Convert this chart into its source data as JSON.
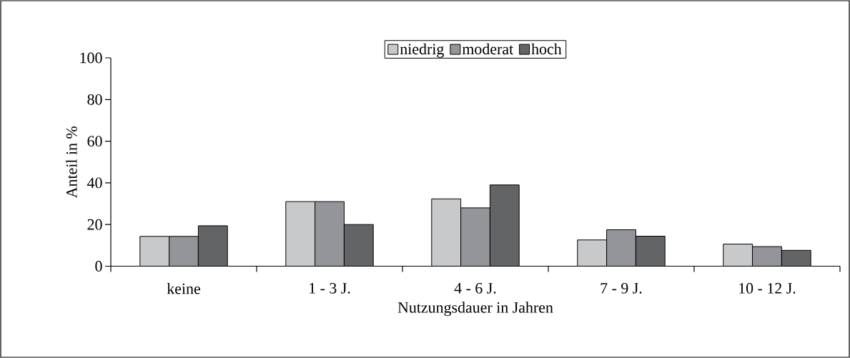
{
  "chart_data": {
    "type": "bar",
    "xlabel": "Nutzungsdauer in Jahren",
    "ylabel": "Anteil in %",
    "categories": [
      "keine",
      "1 - 3 J.",
      "4 - 6 J.",
      "7 - 9 J.",
      "10 - 12 J."
    ],
    "series": [
      {
        "name": "niedrig",
        "color": "#c8c9cb",
        "values": [
          14.3,
          31,
          32.3,
          12.6,
          10.6
        ]
      },
      {
        "name": "moderat",
        "color": "#939598",
        "values": [
          14.3,
          31,
          28,
          17.5,
          9.4
        ]
      },
      {
        "name": "hoch",
        "color": "#636466",
        "values": [
          19.4,
          20,
          39,
          14.4,
          7.6
        ]
      }
    ],
    "ylim": [
      0,
      100
    ],
    "yticks": [
      0,
      20,
      40,
      60,
      80,
      100
    ],
    "legend": "top"
  }
}
